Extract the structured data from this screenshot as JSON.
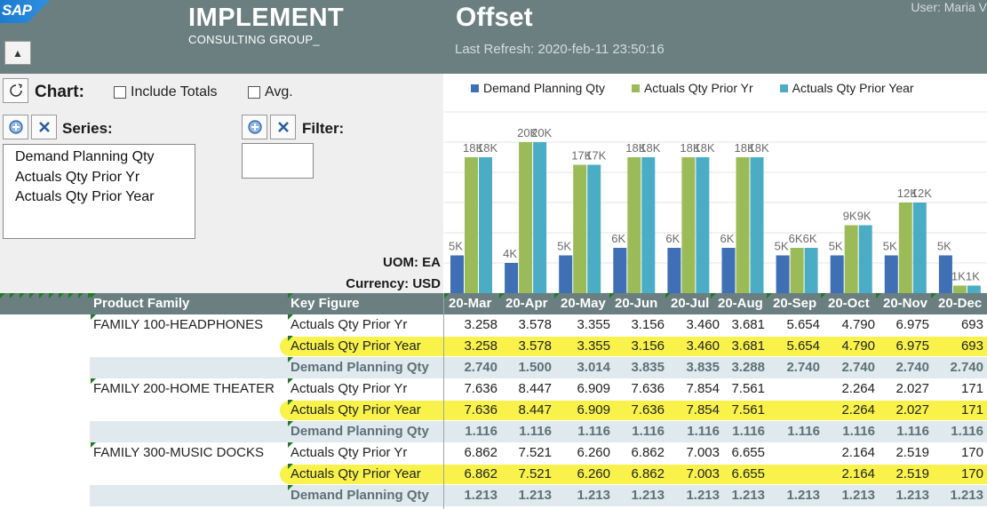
{
  "header": {
    "logo_text": "SAP",
    "brand": "IMPLEMENT",
    "brand_sub": "CONSULTING GROUP_",
    "title": "Offset",
    "last_refresh": "Last Refresh: 2020-feb-11   23:50:16",
    "user": "User: Maria V"
  },
  "panel": {
    "chart_label": "Chart:",
    "include_totals": "Include Totals",
    "avg": "Avg.",
    "series_label": "Series:",
    "filter_label": "Filter:",
    "series": [
      "Demand Planning Qty",
      "Actuals Qty Prior Yr",
      "Actuals Qty Prior Year"
    ],
    "uom": "UOM: EA",
    "currency": "Currency: USD"
  },
  "colors": {
    "header": "#6b7f81",
    "demand": "#3f6fb5",
    "prior_yr": "#9bbb59",
    "prior_year": "#4bacc6",
    "highlight": "#f8f24a",
    "demand_band": "#dfe9ee"
  },
  "chart_data": {
    "type": "bar",
    "categories": [
      "20-Mar",
      "20-Apr",
      "20-May",
      "20-Jun",
      "20-Jul",
      "20-Aug",
      "20-Sep",
      "20-Oct",
      "20-Nov",
      "20-Dec"
    ],
    "series": [
      {
        "name": "Demand Planning Qty",
        "values": [
          5,
          4,
          5,
          6,
          6,
          6,
          5,
          5,
          5,
          5
        ],
        "labels": [
          "5K",
          "4K",
          "5K",
          "6K",
          "6K",
          "6K",
          "5K",
          "5K",
          "5K",
          "5K"
        ]
      },
      {
        "name": "Actuals Qty Prior Yr",
        "values": [
          18,
          20,
          17,
          18,
          18,
          18,
          6,
          9,
          12,
          1
        ],
        "labels": [
          "18K",
          "20K",
          "17K",
          "18K",
          "18K",
          "18K",
          "6K",
          "9K",
          "12K",
          "1K"
        ]
      },
      {
        "name": "Actuals Qty Prior Year",
        "values": [
          18,
          20,
          17,
          18,
          18,
          18,
          6,
          9,
          12,
          1
        ],
        "labels": [
          "18K",
          "20K",
          "17K",
          "18K",
          "18K",
          "18K",
          "6K",
          "9K",
          "12K",
          "1K"
        ]
      }
    ],
    "legend": "top",
    "grid": true,
    "ylim": [
      0,
      24
    ]
  },
  "table": {
    "col_product_family": "Product Family",
    "col_key_figure": "Key Figure",
    "months": [
      "20-Mar",
      "20-Apr",
      "20-May",
      "20-Jun",
      "20-Jul",
      "20-Aug",
      "20-Sep",
      "20-Oct",
      "20-Nov",
      "20-Dec"
    ],
    "rows": [
      {
        "family": "FAMILY 100-HEADPHONES",
        "kf": "Actuals Qty Prior Yr",
        "type": "prioryr",
        "vals": [
          "3.258",
          "3.578",
          "3.355",
          "3.156",
          "3.460",
          "3.681",
          "5.654",
          "4.790",
          "6.975",
          "693"
        ]
      },
      {
        "family": "",
        "kf": "Actuals Qty Prior Year",
        "type": "prioryear",
        "vals": [
          "3.258",
          "3.578",
          "3.355",
          "3.156",
          "3.460",
          "3.681",
          "5.654",
          "4.790",
          "6.975",
          "693"
        ]
      },
      {
        "family": "",
        "kf": "Demand Planning Qty",
        "type": "demand",
        "vals": [
          "2.740",
          "1.500",
          "3.014",
          "3.835",
          "3.835",
          "3.288",
          "2.740",
          "2.740",
          "2.740",
          "2.740"
        ]
      },
      {
        "family": "FAMILY 200-HOME THEATER",
        "kf": "Actuals Qty Prior Yr",
        "type": "prioryr",
        "vals": [
          "7.636",
          "8.447",
          "6.909",
          "7.636",
          "7.854",
          "7.561",
          "",
          "2.264",
          "2.027",
          "171"
        ]
      },
      {
        "family": "",
        "kf": "Actuals Qty Prior Year",
        "type": "prioryear",
        "vals": [
          "7.636",
          "8.447",
          "6.909",
          "7.636",
          "7.854",
          "7.561",
          "",
          "2.264",
          "2.027",
          "171"
        ]
      },
      {
        "family": "",
        "kf": "Demand Planning Qty",
        "type": "demand",
        "vals": [
          "1.116",
          "1.116",
          "1.116",
          "1.116",
          "1.116",
          "1.116",
          "1.116",
          "1.116",
          "1.116",
          "1.116"
        ]
      },
      {
        "family": "FAMILY 300-MUSIC DOCKS",
        "kf": "Actuals Qty Prior Yr",
        "type": "prioryr",
        "vals": [
          "6.862",
          "7.521",
          "6.260",
          "6.862",
          "7.003",
          "6.655",
          "",
          "2.164",
          "2.519",
          "170"
        ]
      },
      {
        "family": "",
        "kf": "Actuals Qty Prior Year",
        "type": "prioryear",
        "vals": [
          "6.862",
          "7.521",
          "6.260",
          "6.862",
          "7.003",
          "6.655",
          "",
          "2.164",
          "2.519",
          "170"
        ]
      },
      {
        "family": "",
        "kf": "Demand Planning Qty",
        "type": "demand",
        "vals": [
          "1.213",
          "1.213",
          "1.213",
          "1.213",
          "1.213",
          "1.213",
          "1.213",
          "1.213",
          "1.213",
          "1.213"
        ]
      }
    ]
  }
}
